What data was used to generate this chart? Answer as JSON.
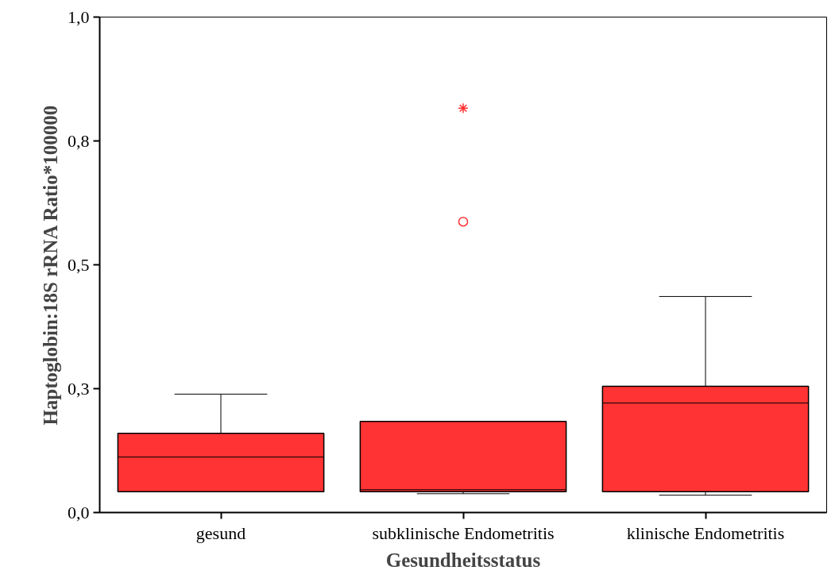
{
  "chart_data": {
    "type": "box",
    "categories": [
      "gesund",
      "subklinische Endometritis",
      "klinische Endometritis"
    ],
    "boxes": [
      {
        "low": 0.042,
        "q1": 0.042,
        "median": 0.112,
        "q3": 0.16,
        "high": 0.239
      },
      {
        "low": 0.038,
        "q1": 0.042,
        "median": 0.046,
        "q3": 0.184,
        "high": 0.184,
        "outliers": [
          0.587,
          0.816
        ]
      },
      {
        "low": 0.035,
        "q1": 0.042,
        "median": 0.221,
        "q3": 0.255,
        "high": 0.436
      }
    ],
    "color": "#ff3333",
    "xlabel": "Gesundheitsstatus",
    "ylabel": "Haptoglobin:18S rRNA Ratio*100000",
    "ylim": [
      0,
      1.0
    ],
    "yticks": [
      {
        "value": 0,
        "label": "0,0"
      },
      {
        "value": 0.25,
        "label": "0,3"
      },
      {
        "value": 0.5,
        "label": "0,5"
      },
      {
        "value": 0.75,
        "label": "0,8"
      },
      {
        "value": 1.0,
        "label": "1,0"
      }
    ],
    "grid": false
  }
}
